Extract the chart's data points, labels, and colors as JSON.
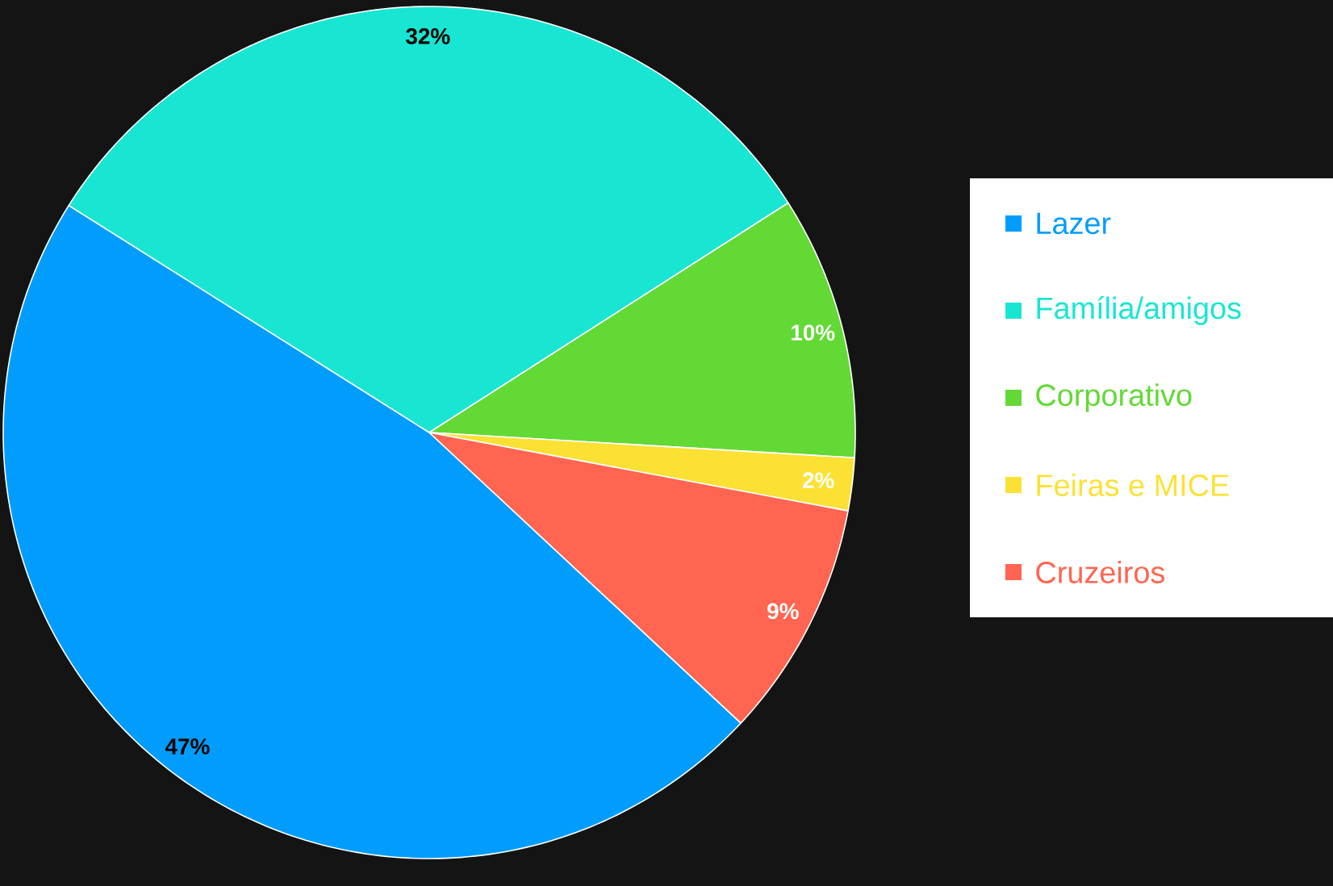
{
  "chart_data": {
    "type": "pie",
    "categories": [
      "Lazer",
      "Família/amigos",
      "Corporativo",
      "Feiras e MICE",
      "Cruzeiros"
    ],
    "values": [
      47,
      32,
      10,
      2,
      9
    ],
    "colors": [
      "#009dff",
      "#19e6d2",
      "#62d935",
      "#fce135",
      "#ff6550"
    ],
    "value_labels": [
      "47%",
      "32%",
      "10%",
      "2%",
      "9%"
    ],
    "legend": "right"
  }
}
